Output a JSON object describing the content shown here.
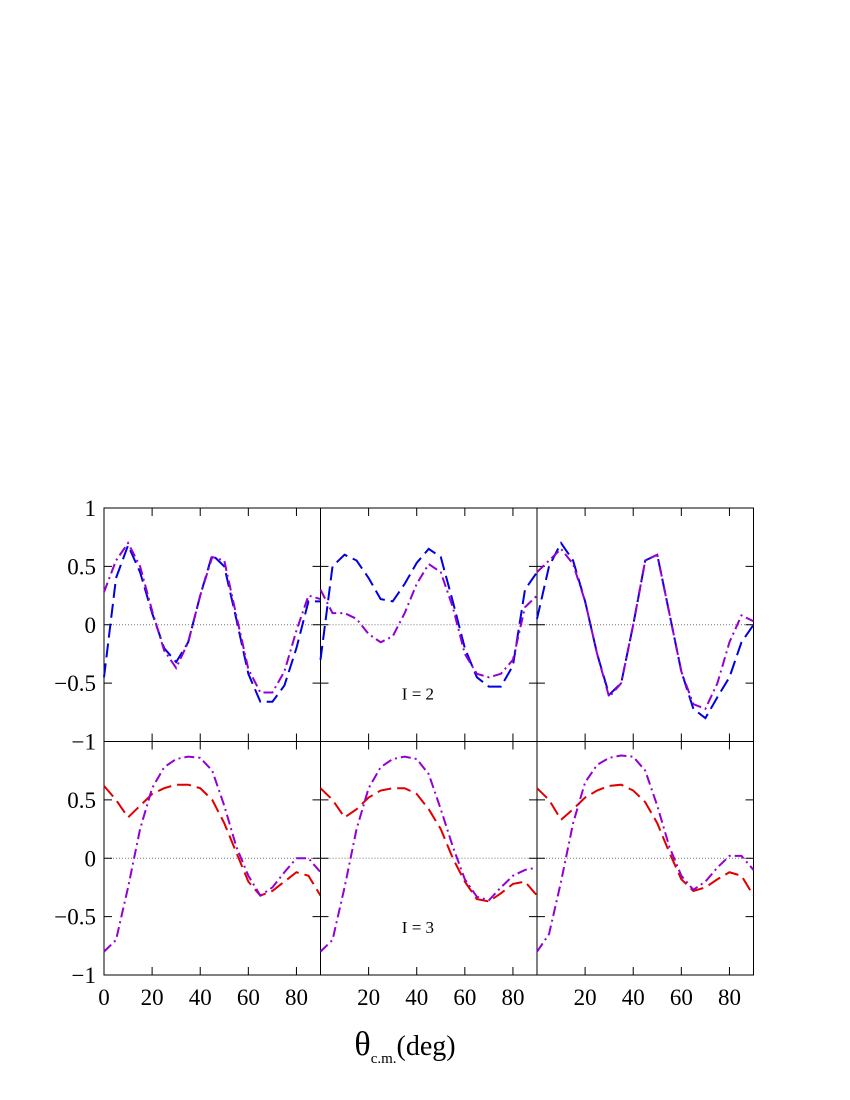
{
  "chart_data": [
    {
      "type": "line",
      "xlim": [
        0,
        90
      ],
      "ylim": [
        -1,
        1
      ],
      "xticks": [
        0,
        20,
        40,
        60,
        80
      ],
      "xticklabels": false,
      "yticks": [
        1,
        0.5,
        0,
        {
          "value": -0.5,
          "label": "−0.5"
        },
        {
          "value": -1,
          "label": "−1"
        }
      ],
      "yticklabels": true,
      "zero_line": true,
      "x": [
        0,
        5,
        10,
        15,
        20,
        25,
        30,
        35,
        40,
        45,
        50,
        55,
        60,
        65,
        70,
        75,
        80,
        85,
        90
      ],
      "series": [
        {
          "color": "#0000e0",
          "dash": "dashed",
          "values": [
            -0.45,
            0.4,
            0.68,
            0.45,
            0.1,
            -0.2,
            -0.32,
            -0.15,
            0.25,
            0.6,
            0.5,
            0.05,
            -0.42,
            -0.66,
            -0.66,
            -0.52,
            -0.2,
            0.2,
            0.2
          ]
        },
        {
          "color": "#9400d3",
          "dash": "dashdot",
          "values": [
            0.28,
            0.55,
            0.7,
            0.5,
            0.12,
            -0.22,
            -0.37,
            -0.15,
            0.25,
            0.58,
            0.55,
            0.08,
            -0.38,
            -0.58,
            -0.58,
            -0.4,
            -0.05,
            0.25,
            0.22
          ]
        }
      ]
    },
    {
      "type": "line",
      "xlim": [
        0,
        90
      ],
      "ylim": [
        -1,
        1
      ],
      "xticks": [
        0,
        20,
        40,
        60,
        80
      ],
      "xticklabels": false,
      "yticks": [
        -1,
        -0.5,
        0,
        0.5,
        1
      ],
      "yticklabels": false,
      "zero_line": true,
      "annotation": "I = 2",
      "x": [
        0,
        5,
        10,
        15,
        20,
        25,
        30,
        35,
        40,
        45,
        50,
        55,
        60,
        65,
        70,
        75,
        80,
        85,
        90
      ],
      "series": [
        {
          "color": "#0000e0",
          "dash": "dashed",
          "values": [
            -0.3,
            0.5,
            0.6,
            0.55,
            0.4,
            0.22,
            0.2,
            0.35,
            0.53,
            0.65,
            0.58,
            0.2,
            -0.2,
            -0.45,
            -0.53,
            -0.53,
            -0.35,
            0.3,
            0.45
          ]
        },
        {
          "color": "#9400d3",
          "dash": "dashdot",
          "values": [
            0.3,
            0.1,
            0.1,
            0.05,
            -0.08,
            -0.15,
            -0.1,
            0.1,
            0.35,
            0.52,
            0.45,
            0.15,
            -0.25,
            -0.42,
            -0.45,
            -0.42,
            -0.3,
            0.15,
            0.25
          ]
        }
      ]
    },
    {
      "type": "line",
      "xlim": [
        0,
        90
      ],
      "ylim": [
        -1,
        1
      ],
      "xticks": [
        0,
        20,
        40,
        60,
        80
      ],
      "xticklabels": false,
      "yticks": [
        -1,
        -0.5,
        0,
        0.5,
        1
      ],
      "yticklabels": false,
      "zero_line": true,
      "x": [
        0,
        5,
        10,
        15,
        20,
        25,
        30,
        35,
        40,
        45,
        50,
        55,
        60,
        65,
        70,
        75,
        80,
        85,
        90
      ],
      "series": [
        {
          "color": "#0000e0",
          "dash": "dashed",
          "values": [
            0.05,
            0.5,
            0.7,
            0.55,
            0.2,
            -0.25,
            -0.6,
            -0.5,
            0.0,
            0.55,
            0.6,
            0.1,
            -0.4,
            -0.72,
            -0.8,
            -0.62,
            -0.45,
            -0.15,
            0.0
          ]
        },
        {
          "color": "#9400d3",
          "dash": "dashdot",
          "values": [
            0.45,
            0.55,
            0.65,
            0.52,
            0.2,
            -0.25,
            -0.62,
            -0.5,
            0.0,
            0.55,
            0.6,
            0.1,
            -0.4,
            -0.68,
            -0.72,
            -0.5,
            -0.15,
            0.08,
            0.03
          ]
        }
      ]
    },
    {
      "type": "line",
      "xlim": [
        0,
        90
      ],
      "ylim": [
        -1,
        1
      ],
      "xticks": [
        0,
        20,
        40,
        60,
        80
      ],
      "xticklabels": true,
      "yticks": [
        0.5,
        0,
        {
          "value": -0.5,
          "label": "−0.5"
        },
        {
          "value": -1,
          "label": "−1"
        }
      ],
      "yticklabels": true,
      "zero_line": true,
      "x": [
        0,
        5,
        10,
        15,
        20,
        25,
        30,
        35,
        40,
        45,
        50,
        55,
        60,
        65,
        70,
        75,
        80,
        85,
        90
      ],
      "series": [
        {
          "color": "#e00000",
          "dash": "dashed",
          "values": [
            0.62,
            0.5,
            0.35,
            0.45,
            0.55,
            0.6,
            0.63,
            0.63,
            0.6,
            0.5,
            0.3,
            0.05,
            -0.2,
            -0.32,
            -0.28,
            -0.2,
            -0.12,
            -0.15,
            -0.32
          ]
        },
        {
          "color": "#9400d3",
          "dash": "dashdot",
          "values": [
            -0.8,
            -0.7,
            -0.25,
            0.25,
            0.6,
            0.78,
            0.85,
            0.87,
            0.86,
            0.75,
            0.45,
            0.1,
            -0.15,
            -0.32,
            -0.25,
            -0.12,
            0.0,
            0.0,
            -0.12
          ]
        }
      ]
    },
    {
      "type": "line",
      "xlim": [
        0,
        90
      ],
      "ylim": [
        -1,
        1
      ],
      "xticks": [
        20,
        40,
        60,
        80
      ],
      "xticklabels": true,
      "yticks": [
        -1,
        -0.5,
        0,
        0.5,
        1
      ],
      "yticklabels": false,
      "zero_line": true,
      "annotation": "I = 3",
      "x": [
        0,
        5,
        10,
        15,
        20,
        25,
        30,
        35,
        40,
        45,
        50,
        55,
        60,
        65,
        70,
        75,
        80,
        85,
        90
      ],
      "series": [
        {
          "color": "#e00000",
          "dash": "dashed",
          "values": [
            0.6,
            0.5,
            0.35,
            0.42,
            0.52,
            0.58,
            0.6,
            0.6,
            0.55,
            0.42,
            0.25,
            0.0,
            -0.2,
            -0.35,
            -0.37,
            -0.3,
            -0.22,
            -0.2,
            -0.32
          ]
        },
        {
          "color": "#9400d3",
          "dash": "dashdot",
          "values": [
            -0.8,
            -0.7,
            -0.25,
            0.25,
            0.6,
            0.78,
            0.85,
            0.87,
            0.85,
            0.72,
            0.42,
            0.1,
            -0.18,
            -0.33,
            -0.36,
            -0.25,
            -0.15,
            -0.1,
            -0.08
          ]
        }
      ]
    },
    {
      "type": "line",
      "xlim": [
        0,
        90
      ],
      "ylim": [
        -1,
        1
      ],
      "xticks": [
        20,
        40,
        60,
        80
      ],
      "xticklabels": true,
      "yticks": [
        -1,
        -0.5,
        0,
        0.5,
        1
      ],
      "yticklabels": false,
      "zero_line": true,
      "x": [
        0,
        5,
        10,
        15,
        20,
        25,
        30,
        35,
        40,
        45,
        50,
        55,
        60,
        65,
        70,
        75,
        80,
        85,
        90
      ],
      "series": [
        {
          "color": "#e00000",
          "dash": "dashed",
          "values": [
            0.6,
            0.5,
            0.33,
            0.42,
            0.52,
            0.58,
            0.62,
            0.63,
            0.58,
            0.48,
            0.3,
            0.05,
            -0.18,
            -0.28,
            -0.25,
            -0.18,
            -0.12,
            -0.15,
            -0.32
          ]
        },
        {
          "color": "#9400d3",
          "dash": "dashdot",
          "values": [
            -0.8,
            -0.65,
            -0.2,
            0.3,
            0.65,
            0.8,
            0.86,
            0.88,
            0.87,
            0.75,
            0.45,
            0.1,
            -0.15,
            -0.27,
            -0.2,
            -0.08,
            0.02,
            0.02,
            -0.1
          ]
        }
      ]
    }
  ],
  "x_label": {
    "symbol": "θ",
    "subscript": "c.m.",
    "unit": "(deg)"
  }
}
